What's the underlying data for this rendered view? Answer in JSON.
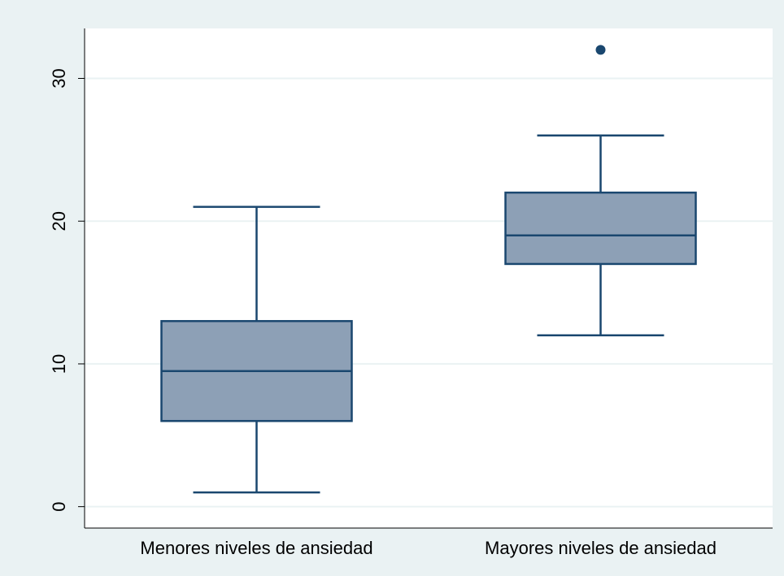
{
  "chart_data": {
    "type": "box",
    "title": "",
    "xlabel": "",
    "ylabel": "",
    "ylim": [
      -1.5,
      33.5
    ],
    "yticks": [
      0,
      10,
      20,
      30
    ],
    "grid": true,
    "legend": "none",
    "categories": [
      "Menores niveles de ansiedad",
      "Mayores niveles de ansiedad"
    ],
    "boxes": [
      {
        "whisker_low": 1,
        "q1": 6,
        "median": 9.5,
        "q3": 13,
        "whisker_high": 21,
        "outliers": []
      },
      {
        "whisker_low": 12,
        "q1": 17,
        "median": 19,
        "q3": 22,
        "whisker_high": 26,
        "outliers": [
          32
        ]
      }
    ],
    "colors": {
      "box_fill": "#8DA0B6",
      "box_line": "#1A476F",
      "outer_background": "#EAF2F3",
      "plot_background": "#FFFFFF",
      "grid": "#EAF2F3",
      "axis": "#000000"
    }
  }
}
